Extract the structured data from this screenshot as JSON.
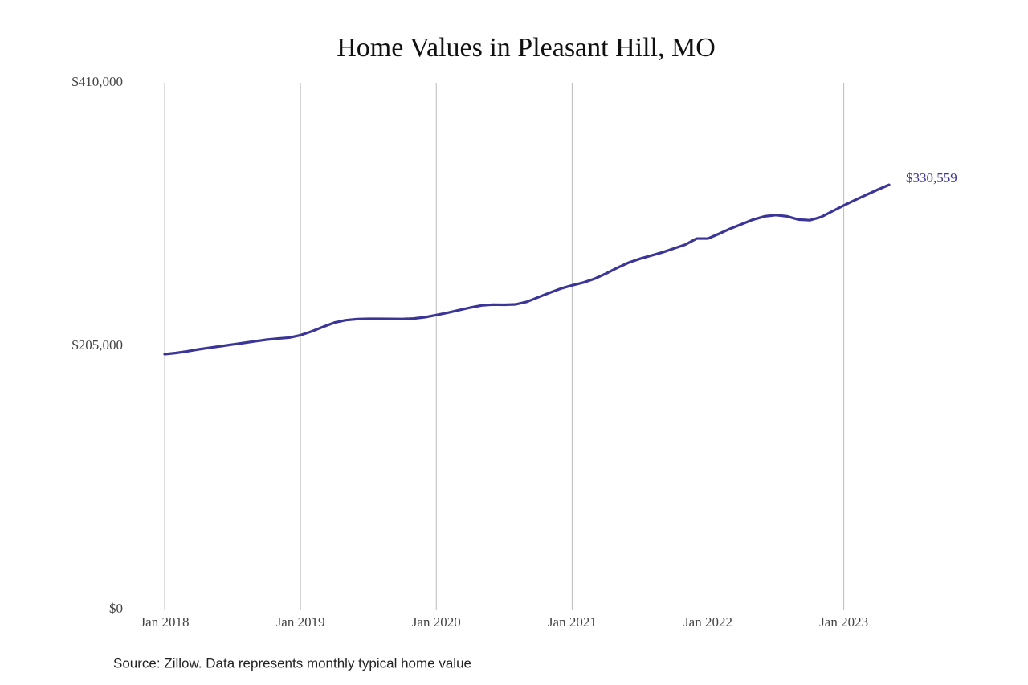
{
  "chart_data": {
    "type": "line",
    "title": "Home Values in Pleasant Hill, MO",
    "source": "Source: Zillow. Data represents monthly typical home value",
    "categories": [
      "Jan 2018",
      null,
      null,
      null,
      null,
      null,
      null,
      null,
      null,
      null,
      null,
      null,
      "Jan 2019",
      null,
      null,
      null,
      null,
      null,
      null,
      null,
      null,
      null,
      null,
      null,
      "Jan 2020",
      null,
      null,
      null,
      null,
      null,
      null,
      null,
      null,
      null,
      null,
      null,
      "Jan 2021",
      null,
      null,
      null,
      null,
      null,
      null,
      null,
      null,
      null,
      null,
      null,
      "Jan 2022",
      null,
      null,
      null,
      null,
      null,
      null,
      null,
      null,
      null,
      null,
      null,
      "Jan 2023",
      null,
      null,
      null,
      null
    ],
    "series": [
      {
        "name": "Pleasant Hill, MO",
        "color": "#3a3597",
        "values": [
          198750,
          199700,
          201000,
          202500,
          203800,
          205000,
          206300,
          207500,
          208800,
          210000,
          210900,
          211600,
          213500,
          216500,
          220000,
          223300,
          225200,
          226000,
          226300,
          226300,
          226200,
          226100,
          226500,
          227500,
          229200,
          231000,
          233000,
          235000,
          236700,
          237300,
          237200,
          237500,
          239500,
          243000,
          246500,
          249800,
          252300,
          254500,
          257500,
          261500,
          266000,
          270000,
          273000,
          275500,
          278000,
          281000,
          284000,
          288700,
          288700,
          292500,
          296500,
          300000,
          303500,
          306000,
          307000,
          306000,
          303500,
          303000,
          305500,
          310000,
          314500,
          318700,
          322800,
          326800,
          330559
        ],
        "value_labels": [
          null,
          null,
          null,
          null,
          null,
          null,
          null,
          null,
          null,
          null,
          null,
          null,
          null,
          null,
          null,
          null,
          null,
          null,
          null,
          null,
          null,
          null,
          null,
          null,
          null,
          null,
          null,
          null,
          null,
          null,
          null,
          null,
          null,
          null,
          null,
          null,
          null,
          null,
          null,
          null,
          null,
          null,
          null,
          null,
          null,
          null,
          null,
          null,
          null,
          null,
          null,
          null,
          null,
          null,
          null,
          null,
          null,
          null,
          null,
          null,
          null,
          null,
          null,
          null,
          "$330,559"
        ]
      }
    ],
    "ylim": [
      0,
      410000
    ],
    "yticks": [
      {
        "value": 0,
        "label": "$0"
      },
      {
        "value": 205000,
        "label": "$205,000"
      },
      {
        "value": 410000,
        "label": "$410,000"
      }
    ],
    "grid": "x"
  }
}
